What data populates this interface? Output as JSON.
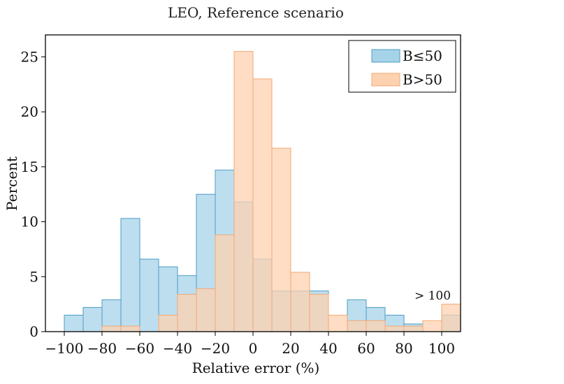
{
  "chart_data": {
    "type": "bar",
    "title": "LEO, Reference scenario",
    "xlabel": "Relative error (%)",
    "ylabel": "Percent",
    "xlim": [
      -110,
      110
    ],
    "ylim": [
      0,
      27
    ],
    "bin_width": 10,
    "bin_starts": [
      -100,
      -90,
      -80,
      -70,
      -60,
      -50,
      -40,
      -30,
      -20,
      -10,
      0,
      10,
      20,
      30,
      40,
      50,
      60,
      70,
      80,
      90,
      100
    ],
    "xticks": [
      -100,
      -80,
      -60,
      -40,
      -20,
      0,
      20,
      40,
      60,
      80,
      100
    ],
    "xtick_labels": [
      "−100",
      "−80",
      "−60",
      "−40",
      "−20",
      "0",
      "20",
      "40",
      "60",
      "80",
      "100"
    ],
    "yticks": [
      0,
      5,
      10,
      15,
      20,
      25
    ],
    "ytick_labels": [
      "0",
      "5",
      "10",
      "15",
      "20",
      "25"
    ],
    "series": [
      {
        "name": "B≤50",
        "fill": "#a7d3e8",
        "stroke": "#4a9cc6",
        "values": [
          1.5,
          2.2,
          2.9,
          10.3,
          6.6,
          5.9,
          5.1,
          12.5,
          14.7,
          11.8,
          6.6,
          3.7,
          3.7,
          3.7,
          0.0,
          2.9,
          2.2,
          1.5,
          0.7,
          0.0,
          1.5
        ]
      },
      {
        "name": "B>50",
        "fill": "#fdd2b0",
        "stroke": "#f2a875",
        "values": [
          0.0,
          0.0,
          0.5,
          0.5,
          0.0,
          1.5,
          3.4,
          3.9,
          8.8,
          25.5,
          23.0,
          16.7,
          5.4,
          3.4,
          1.5,
          1.0,
          1.0,
          0.5,
          0.5,
          1.0,
          2.5
        ]
      }
    ],
    "grid": false,
    "legend_position": "top-right",
    "annotation": "> 100"
  }
}
